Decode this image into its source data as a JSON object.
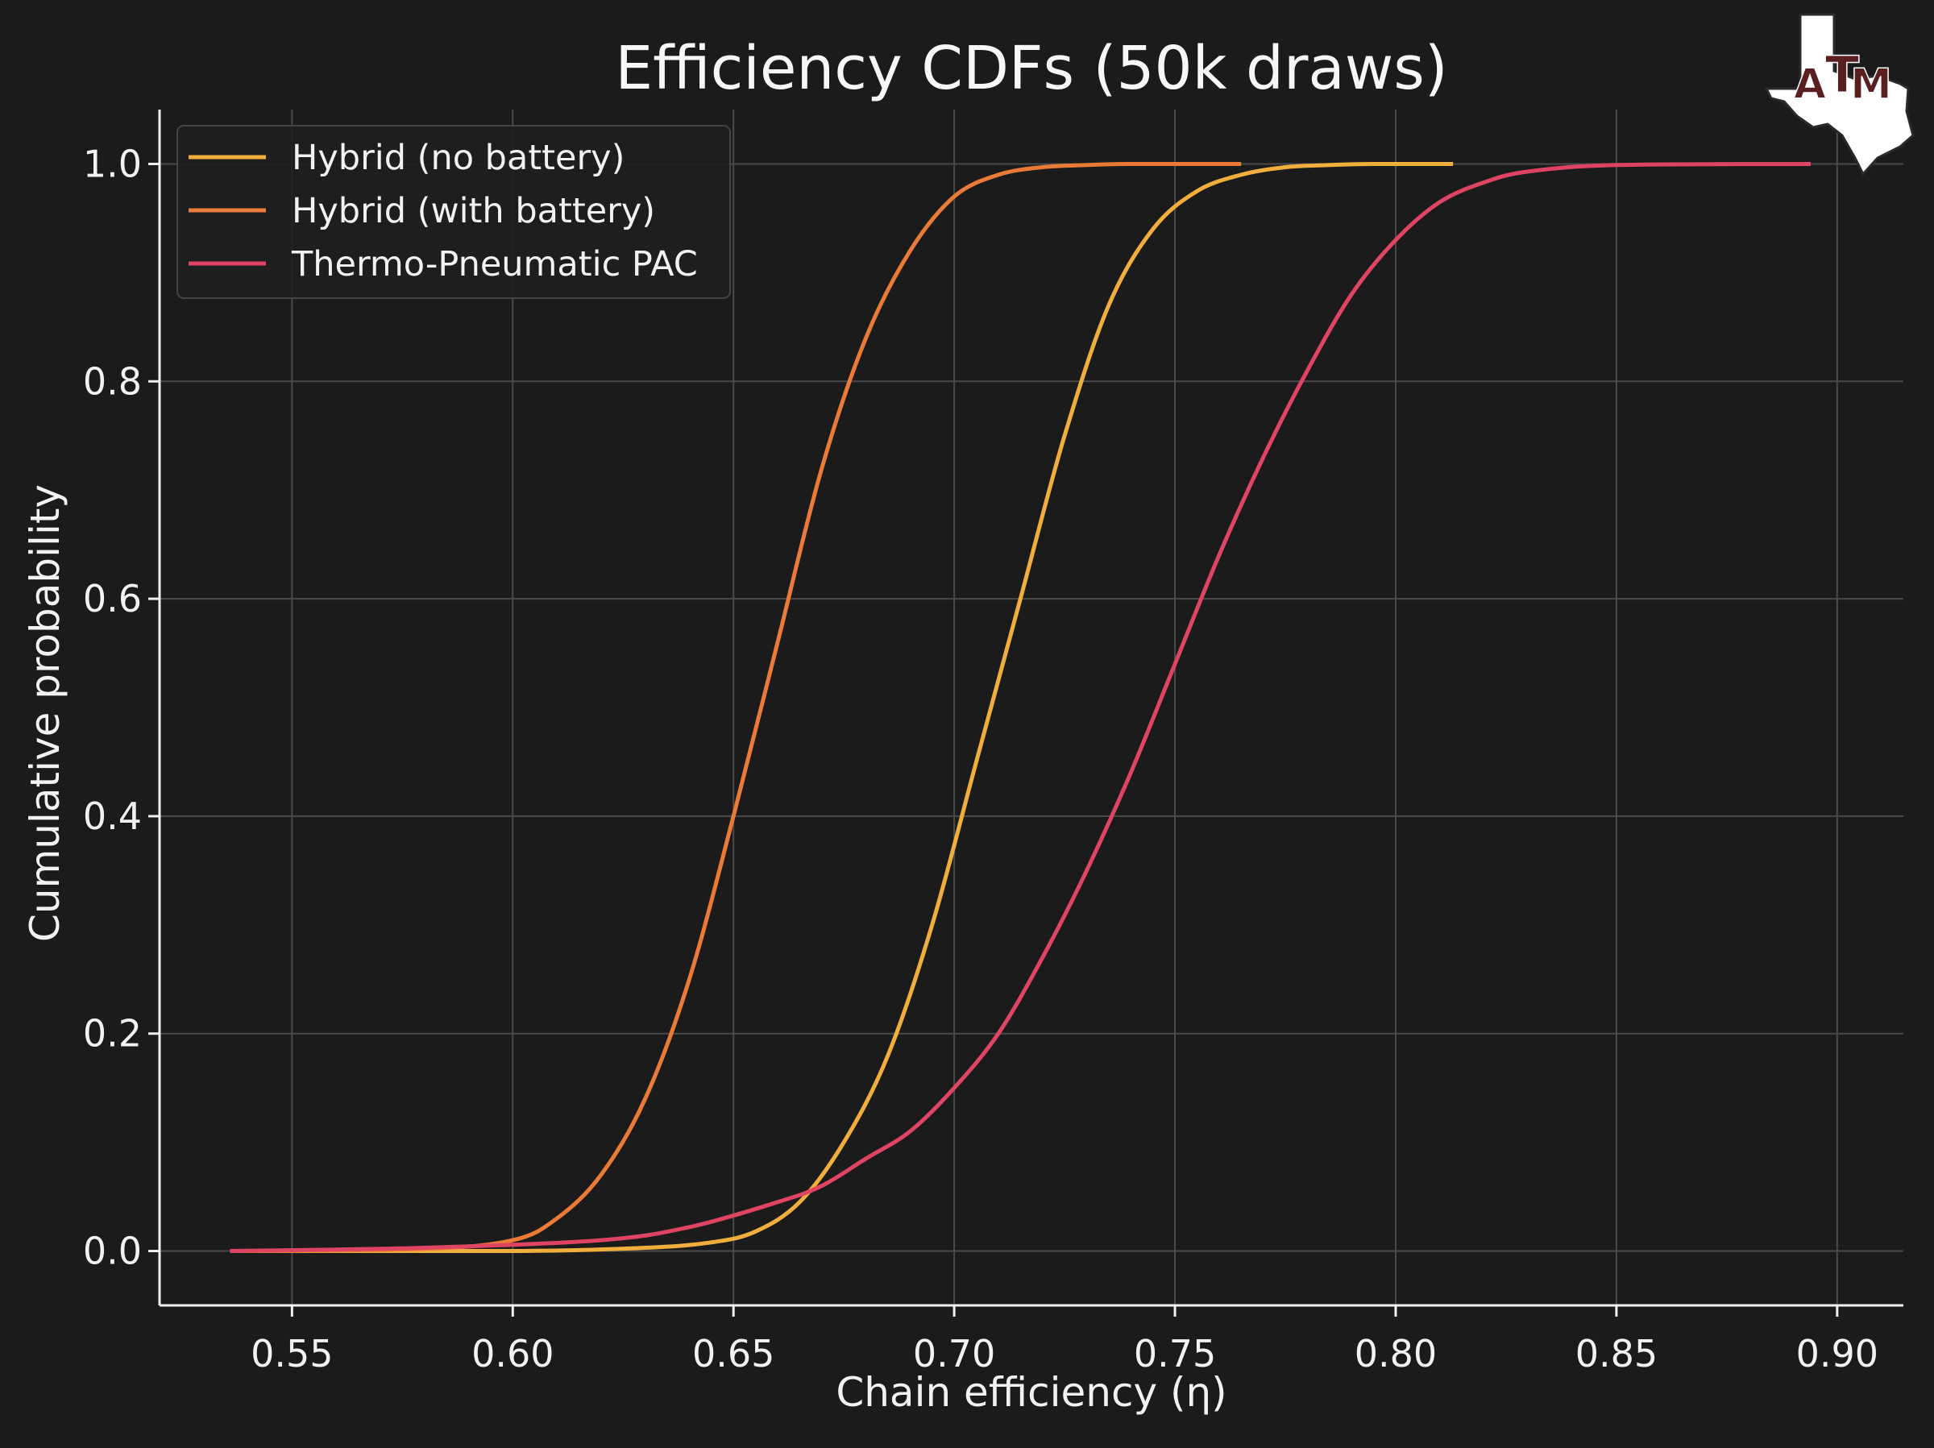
{
  "chart_data": {
    "type": "line",
    "title": "Efficiency CDFs (50k draws)",
    "xlabel": "Chain efficiency (η)",
    "ylabel": "Cumulative probability",
    "xlim": [
      0.52,
      0.915
    ],
    "ylim": [
      -0.05,
      1.05
    ],
    "x_ticks": [
      0.55,
      0.6,
      0.65,
      0.7,
      0.75,
      0.8,
      0.85,
      0.9
    ],
    "x_tick_labels": [
      "0.55",
      "0.60",
      "0.65",
      "0.70",
      "0.75",
      "0.80",
      "0.85",
      "0.90"
    ],
    "y_ticks": [
      0.0,
      0.2,
      0.4,
      0.6,
      0.8,
      1.0
    ],
    "y_tick_labels": [
      "0.0",
      "0.2",
      "0.4",
      "0.6",
      "0.8",
      "1.0"
    ],
    "grid": true,
    "legend_position": "top-left",
    "series": [
      {
        "name": "Hybrid (no battery)",
        "color": "#f2ae3d",
        "x": [
          0.536,
          0.6,
          0.63,
          0.645,
          0.655,
          0.665,
          0.675,
          0.685,
          0.695,
          0.705,
          0.715,
          0.725,
          0.735,
          0.745,
          0.755,
          0.765,
          0.775,
          0.785,
          0.795,
          0.813
        ],
        "y": [
          0.0,
          0.0,
          0.003,
          0.008,
          0.018,
          0.045,
          0.1,
          0.18,
          0.3,
          0.45,
          0.6,
          0.75,
          0.87,
          0.94,
          0.975,
          0.99,
          0.997,
          0.999,
          1.0,
          1.0
        ]
      },
      {
        "name": "Hybrid (with battery)",
        "color": "#ea7a37",
        "x": [
          0.536,
          0.58,
          0.6,
          0.61,
          0.62,
          0.63,
          0.64,
          0.65,
          0.66,
          0.67,
          0.68,
          0.69,
          0.7,
          0.71,
          0.72,
          0.73,
          0.74,
          0.765
        ],
        "y": [
          0.0,
          0.002,
          0.01,
          0.03,
          0.07,
          0.14,
          0.25,
          0.4,
          0.56,
          0.72,
          0.84,
          0.92,
          0.97,
          0.99,
          0.997,
          0.999,
          1.0,
          1.0
        ]
      },
      {
        "name": "Thermo-Pneumatic PAC",
        "color": "#df4462",
        "x": [
          0.536,
          0.58,
          0.62,
          0.64,
          0.66,
          0.67,
          0.68,
          0.69,
          0.7,
          0.71,
          0.72,
          0.73,
          0.74,
          0.75,
          0.76,
          0.77,
          0.78,
          0.79,
          0.8,
          0.81,
          0.82,
          0.83,
          0.85,
          0.894
        ],
        "y": [
          0.0,
          0.003,
          0.01,
          0.022,
          0.045,
          0.06,
          0.085,
          0.11,
          0.15,
          0.2,
          0.27,
          0.35,
          0.44,
          0.54,
          0.64,
          0.73,
          0.81,
          0.88,
          0.93,
          0.965,
          0.983,
          0.993,
          0.999,
          1.0
        ]
      }
    ]
  },
  "logo": {
    "label": "ATM",
    "color": "#5a1f1f"
  }
}
